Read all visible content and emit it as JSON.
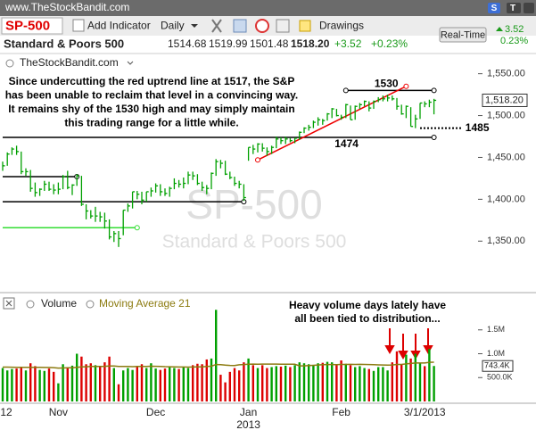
{
  "header": {
    "site": "www.TheStockBandit.com",
    "symbol": "SP-500",
    "add_indicator": "Add Indicator",
    "interval": "Daily",
    "drawings": "Drawings",
    "name": "Standard & Poors 500",
    "open": "1514.68",
    "high": "1519.99",
    "low": "1501.48",
    "close": "1518.20",
    "change": "+3.52",
    "change_pct": "+0.23%",
    "realtime": "Real-Time",
    "side_change": "3.52",
    "side_change_pct": "0.23%",
    "btn_s": "S",
    "btn_t": "T"
  },
  "chart_data": [
    {
      "type": "ohlc",
      "source_label": "TheStockBandit.com",
      "watermark": "SP-500",
      "watermark_subtitle": "Standard & Poors 500",
      "note": [
        "Since undercutting the red uptrend line at 1517, the S&P",
        "has been unable to reclaim that level in a convincing way.",
        "It remains shy of the 1530 high and may simply maintain",
        "this trading range for a little while."
      ],
      "up_color": "#00a000",
      "down_color": "#00a000",
      "high": [
        1445,
        1456,
        1462,
        1464,
        1457,
        1437,
        1435,
        1420,
        1413,
        1422,
        1421,
        1418,
        1420,
        1429,
        1434,
        1418,
        1430,
        1428,
        1394,
        1387,
        1391,
        1385,
        1384,
        1376,
        1362,
        1362,
        1387,
        1395,
        1409,
        1410,
        1409,
        1409,
        1414,
        1419,
        1418,
        1413,
        1415,
        1425,
        1423,
        1426,
        1433,
        1433,
        1430,
        1421,
        1417,
        1432,
        1448,
        1447,
        1446,
        1433,
        1427,
        1422,
        1418,
        1462,
        1465,
        1467,
        1467,
        1462,
        1464,
        1475,
        1474,
        1475,
        1473,
        1473,
        1481,
        1486,
        1489,
        1494,
        1498,
        1496,
        1503,
        1509,
        1508,
        1501,
        1514,
        1512,
        1512,
        1515,
        1518,
        1517,
        1518,
        1522,
        1524,
        1525,
        1524,
        1521,
        1513,
        1512,
        1510,
        1501,
        1515,
        1517,
        1519,
        1519.99
      ],
      "low": [
        1434,
        1440,
        1453,
        1453,
        1430,
        1428,
        1409,
        1403,
        1404,
        1410,
        1410,
        1406,
        1406,
        1412,
        1412,
        1405,
        1416,
        1392,
        1376,
        1377,
        1373,
        1373,
        1365,
        1352,
        1349,
        1343,
        1357,
        1385,
        1389,
        1400,
        1394,
        1397,
        1403,
        1408,
        1404,
        1404,
        1403,
        1412,
        1414,
        1413,
        1418,
        1423,
        1417,
        1410,
        1406,
        1412,
        1428,
        1437,
        1429,
        1424,
        1416,
        1413,
        1398,
        1446,
        1454,
        1456,
        1457,
        1452,
        1454,
        1461,
        1466,
        1466,
        1468,
        1467,
        1471,
        1479,
        1482,
        1485,
        1488,
        1489,
        1494,
        1497,
        1499,
        1495,
        1497,
        1495,
        1495,
        1508,
        1511,
        1505,
        1508,
        1516,
        1517,
        1517,
        1518,
        1507,
        1501,
        1497,
        1487,
        1485,
        1496,
        1510,
        1510,
        1501.48
      ],
      "close": [
        1440,
        1454,
        1460,
        1457,
        1433,
        1433,
        1413,
        1408,
        1412,
        1418,
        1412,
        1411,
        1412,
        1427,
        1414,
        1417,
        1428,
        1394,
        1386,
        1380,
        1380,
        1379,
        1374,
        1355,
        1359,
        1353,
        1387,
        1392,
        1409,
        1406,
        1399,
        1409,
        1410,
        1416,
        1409,
        1407,
        1413,
        1419,
        1418,
        1419,
        1429,
        1428,
        1419,
        1414,
        1413,
        1431,
        1445,
        1443,
        1430,
        1426,
        1419,
        1418,
        1402,
        1462,
        1460,
        1466,
        1461,
        1457,
        1462,
        1472,
        1470,
        1472,
        1470,
        1473,
        1480,
        1485,
        1486,
        1492,
        1495,
        1494,
        1502,
        1508,
        1500,
        1498,
        1513,
        1495,
        1511,
        1513,
        1517,
        1509,
        1517,
        1519,
        1520,
        1521,
        1520,
        1511,
        1502,
        1511,
        1487,
        1496,
        1515,
        1514,
        1516,
        1518.2
      ],
      "ylim": [
        1297,
        1572
      ],
      "yticks": [
        {
          "value": 1550,
          "label": "1,550.00"
        },
        {
          "value": 1500,
          "label": "1,500.00"
        },
        {
          "value": 1450,
          "label": "1,450.00"
        },
        {
          "value": 1400,
          "label": "1,400.00"
        },
        {
          "value": 1350,
          "label": "1,350.00"
        }
      ],
      "last_value_label": "1,518.20",
      "lines": [
        {
          "x": [
            74,
            93
          ],
          "y": [
            1530,
            1530
          ],
          "color": "#000000",
          "label": "1530"
        },
        {
          "x": [
            0,
            93
          ],
          "y": [
            1474,
            1474
          ],
          "color": "#000000",
          "label": "1474"
        },
        {
          "x": [
            0,
            16
          ],
          "y": [
            1427,
            1427
          ],
          "color": "#000000"
        },
        {
          "x": [
            0,
            52
          ],
          "y": [
            1397,
            1397
          ],
          "color": "#000000"
        },
        {
          "x": [
            0,
            29
          ],
          "y": [
            1366,
            1366
          ],
          "color": "#33dd33"
        },
        {
          "x": [
            90,
            99
          ],
          "y": [
            1485,
            1485
          ],
          "color": "#000000",
          "label": "1485",
          "dotted": true
        },
        {
          "x": [
            55,
            87
          ],
          "y": [
            1447,
            1535
          ],
          "color": "#ee0000"
        }
      ]
    },
    {
      "type": "bar",
      "title": "Volume",
      "ma_name": "Moving Average 21",
      "ma_color": "#8c7b10",
      "note": [
        "Heavy volume days lately have",
        "all been tied to distribution..."
      ],
      "up_color": "#00a000",
      "down_color": "#dd0000",
      "values": [
        700000,
        650000,
        680000,
        690000,
        720000,
        650000,
        800000,
        740000,
        660000,
        640000,
        690000,
        620000,
        380000,
        780000,
        720000,
        750000,
        1000000,
        940000,
        780000,
        800000,
        760000,
        720000,
        820000,
        940000,
        700000,
        360000,
        650000,
        700000,
        660000,
        720000,
        780000,
        700000,
        800000,
        690000,
        660000,
        690000,
        720000,
        700000,
        680000,
        720000,
        700000,
        760000,
        790000,
        780000,
        880000,
        900000,
        1920000,
        560000,
        400000,
        620000,
        700000,
        650000,
        820000,
        900000,
        760000,
        700000,
        760000,
        700000,
        720000,
        740000,
        730000,
        750000,
        720000,
        760000,
        820000,
        800000,
        780000,
        760000,
        800000,
        810000,
        830000,
        820000,
        780000,
        860000,
        790000,
        760000,
        720000,
        740000,
        700000,
        680000,
        640000,
        720000,
        720000,
        650000,
        820000,
        1050000,
        780000,
        980000,
        900000,
        1000000,
        800000,
        740000,
        1100000,
        743400
      ],
      "ma_values": [
        720000,
        720000,
        718000,
        716000,
        716000,
        714000,
        716000,
        716000,
        714000,
        712000,
        712000,
        708000,
        700000,
        702000,
        704000,
        706000,
        716000,
        724000,
        728000,
        732000,
        734000,
        734000,
        736000,
        742000,
        742000,
        734000,
        732000,
        732000,
        730000,
        732000,
        734000,
        734000,
        738000,
        736000,
        734000,
        730000,
        728000,
        726000,
        722000,
        722000,
        720000,
        722000,
        724000,
        726000,
        732000,
        738000,
        774000,
        770000,
        760000,
        756000,
        754000,
        768000,
        774000,
        780000,
        784000,
        782000,
        784000,
        784000,
        784000,
        784000,
        782000,
        782000,
        780000,
        780000,
        746000,
        746000,
        752000,
        758000,
        764000,
        770000,
        774000,
        774000,
        770000,
        776000,
        776000,
        778000,
        776000,
        778000,
        776000,
        774000,
        770000,
        766000,
        764000,
        760000,
        764000,
        776000,
        776000,
        788000,
        796000,
        806000,
        806000,
        806000,
        820000,
        822000
      ],
      "ylim": [
        0,
        2150000
      ],
      "yticks": [
        {
          "value": 1500000,
          "label": "1.5M"
        },
        {
          "value": 1000000,
          "label": "1.0M"
        },
        {
          "value": 500000,
          "label": "500.0K"
        }
      ],
      "last_value_label": "743.4K",
      "xticks": [
        {
          "value": 0,
          "label": "12"
        },
        {
          "value": 12,
          "label": "Nov"
        },
        {
          "value": 33,
          "label": "Dec"
        },
        {
          "value": 53,
          "label": "Jan"
        },
        {
          "value": 73,
          "label": "Feb"
        },
        {
          "value": 91,
          "label": "3/1/2013"
        }
      ],
      "year_label": {
        "value": 53,
        "label": "2013"
      }
    }
  ]
}
